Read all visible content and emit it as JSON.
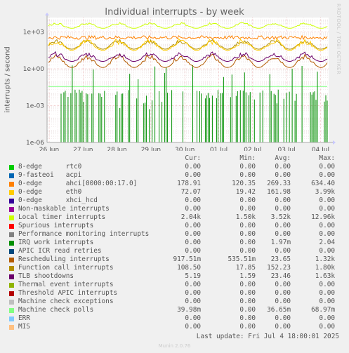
{
  "title": "Individual interrupts - by week",
  "watermark": "RRDTOOL / TOBI OETIKER",
  "footer": {
    "last_update": "Last update: Fri Jul  4 18:00:01 2025",
    "munin": "Munin 2.0.76"
  },
  "legend_headers": {
    "cur": "Cur:",
    "min": "Min:",
    "avg": "Avg:",
    "max": "Max:"
  },
  "chart_data": {
    "type": "line",
    "title": "Individual interrupts - by week",
    "ylabel": "interrupts / second",
    "yscale": "log",
    "ylim": [
      1e-06,
      15000
    ],
    "y_ticks": [
      "1e+03",
      "1e+00",
      "1e-03",
      "1e-06"
    ],
    "x_ticks": [
      "26 Jun",
      "27 Jun",
      "28 Jun",
      "29 Jun",
      "30 Jun",
      "01 Jul",
      "02 Jul",
      "03 Jul",
      "04 Jul"
    ],
    "grid": true,
    "series": [
      {
        "name": "8-edge      rtc0",
        "color": "#00cc00",
        "cur": "0.00",
        "min": "0.00",
        "avg": "0.00",
        "max": "0.00"
      },
      {
        "name": "9-fasteoi   acpi",
        "color": "#0066b3",
        "cur": "0.00",
        "min": "0.00",
        "avg": "0.00",
        "max": "0.00"
      },
      {
        "name": "0-edge      ahci[0000:00:17.0]",
        "color": "#ff8000",
        "cur": "178.91",
        "min": "120.35",
        "avg": "269.33",
        "max": "634.40"
      },
      {
        "name": "0-edge      eth0",
        "color": "#ffcc00",
        "cur": "72.07",
        "min": "19.42",
        "avg": "161.98",
        "max": "3.99k"
      },
      {
        "name": "0-edge      xhci_hcd",
        "color": "#330099",
        "cur": "0.00",
        "min": "0.00",
        "avg": "0.00",
        "max": "0.00"
      },
      {
        "name": "Non-maskable interrupts",
        "color": "#990099",
        "cur": "0.00",
        "min": "0.00",
        "avg": "0.00",
        "max": "0.00"
      },
      {
        "name": "Local timer interrupts",
        "color": "#ccff00",
        "cur": "2.04k",
        "min": "1.50k",
        "avg": "3.52k",
        "max": "12.96k"
      },
      {
        "name": "Spurious interrupts",
        "color": "#ff0000",
        "cur": "0.00",
        "min": "0.00",
        "avg": "0.00",
        "max": "0.00"
      },
      {
        "name": "Performance monitoring interrupts",
        "color": "#808080",
        "cur": "0.00",
        "min": "0.00",
        "avg": "0.00",
        "max": "0.00"
      },
      {
        "name": "IRQ work interrupts",
        "color": "#008f00",
        "cur": "0.00",
        "min": "0.00",
        "avg": "1.97m",
        "max": "2.04"
      },
      {
        "name": "APIC ICR read retries",
        "color": "#00487d",
        "cur": "0.00",
        "min": "0.00",
        "avg": "0.00",
        "max": "0.00"
      },
      {
        "name": "Rescheduling interrupts",
        "color": "#b35a00",
        "cur": "917.51m",
        "min": "535.51m",
        "avg": "23.65",
        "max": "1.32k"
      },
      {
        "name": "Function call interrupts",
        "color": "#b38f00",
        "cur": "108.50",
        "min": "17.85",
        "avg": "152.23",
        "max": "1.80k"
      },
      {
        "name": "TLB shootdowns",
        "color": "#6b006b",
        "cur": "5.19",
        "min": "1.59",
        "avg": "23.46",
        "max": "1.63k"
      },
      {
        "name": "Thermal event interrupts",
        "color": "#8fb300",
        "cur": "0.00",
        "min": "0.00",
        "avg": "0.00",
        "max": "0.00"
      },
      {
        "name": "Threshold APIC interrupts",
        "color": "#b30000",
        "cur": "0.00",
        "min": "0.00",
        "avg": "0.00",
        "max": "0.00"
      },
      {
        "name": "Machine check exceptions",
        "color": "#bebebe",
        "cur": "0.00",
        "min": "0.00",
        "avg": "0.00",
        "max": "0.00"
      },
      {
        "name": "Machine check polls",
        "color": "#80ff80",
        "cur": "39.98m",
        "min": "0.00",
        "avg": "36.65m",
        "max": "68.97m"
      },
      {
        "name": "ERR",
        "color": "#80c9ff",
        "cur": "0.00",
        "min": "0.00",
        "avg": "0.00",
        "max": "0.00"
      },
      {
        "name": "MIS",
        "color": "#ffc080",
        "cur": "0.00",
        "min": "0.00",
        "avg": "0.00",
        "max": "0.00"
      }
    ]
  }
}
